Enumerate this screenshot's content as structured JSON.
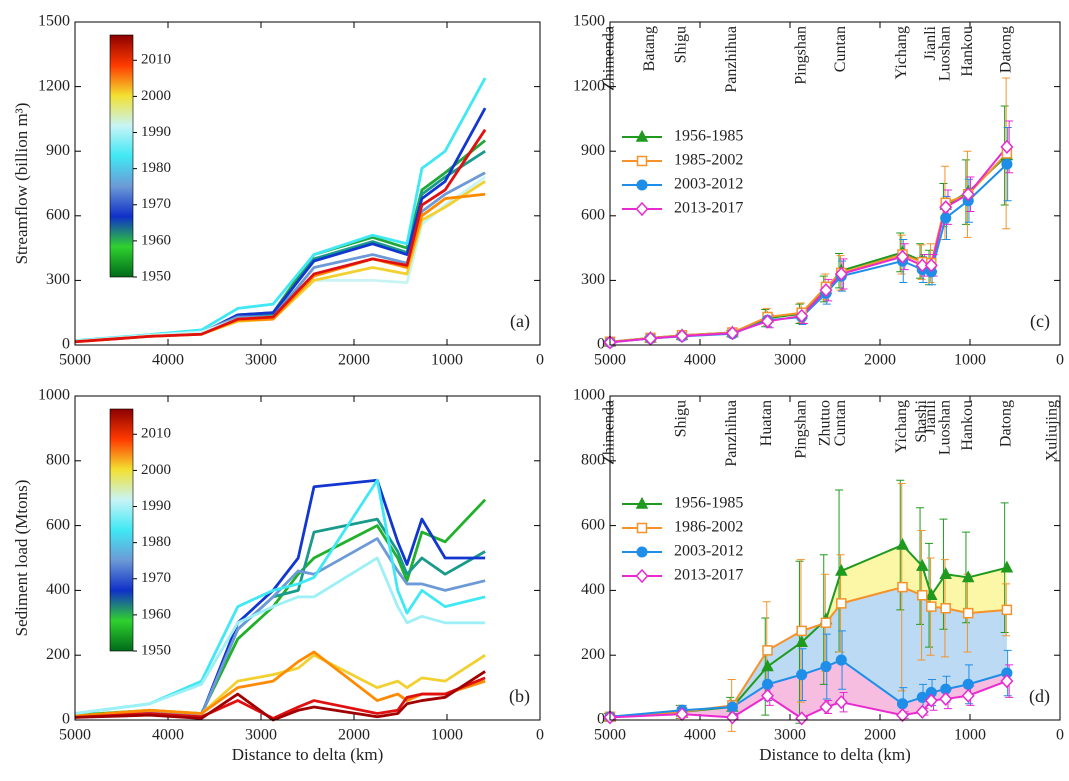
{
  "chart_data": [
    {
      "type": "line",
      "label": "(a)",
      "ylabel": "Streamflow (billion m³)",
      "xlim": [
        5000,
        0
      ],
      "xticks": [
        5000,
        4000,
        3000,
        2000,
        1000,
        0
      ],
      "ylim": [
        0,
        1500
      ],
      "yticks": [
        0,
        300,
        600,
        900,
        1200,
        1500
      ],
      "colorbar": {
        "lim": [
          1950,
          2017
        ],
        "ticks": [
          1950,
          1960,
          1970,
          1980,
          1990,
          2000,
          2010
        ],
        "colors": [
          "#006a1a",
          "#2fd12f",
          "#1030c8",
          "#6c9ad6",
          "#40e8f4",
          "#c8f4f6",
          "#f2e030",
          "#ff3a00",
          "#8c0000"
        ]
      },
      "x": [
        5000,
        4200,
        3640,
        3250,
        2870,
        2430,
        1800,
        1430,
        1270,
        1020,
        590
      ],
      "series": [
        {
          "color": "#21a83a",
          "values": [
            18,
            45,
            55,
            140,
            150,
            420,
            500,
            450,
            720,
            800,
            950
          ]
        },
        {
          "color": "#1a9a8a",
          "values": [
            18,
            45,
            55,
            130,
            140,
            400,
            480,
            430,
            700,
            780,
            900
          ]
        },
        {
          "color": "#1236d0",
          "values": [
            18,
            45,
            55,
            140,
            150,
            390,
            470,
            420,
            680,
            760,
            1100
          ]
        },
        {
          "color": "#6c9ad6",
          "values": [
            18,
            45,
            60,
            130,
            130,
            360,
            420,
            380,
            620,
            700,
            800
          ]
        },
        {
          "color": "#40e8f4",
          "values": [
            20,
            48,
            70,
            170,
            190,
            420,
            510,
            470,
            820,
            900,
            1240
          ]
        },
        {
          "color": "#c8f4f6",
          "values": [
            18,
            45,
            60,
            120,
            130,
            300,
            300,
            290,
            560,
            650,
            780
          ]
        },
        {
          "color": "#f2d030",
          "values": [
            15,
            40,
            50,
            110,
            120,
            300,
            360,
            330,
            580,
            640,
            760
          ]
        },
        {
          "color": "#ff8a00",
          "values": [
            15,
            40,
            50,
            115,
            120,
            320,
            400,
            360,
            600,
            680,
            700
          ]
        },
        {
          "color": "#e01010",
          "values": [
            15,
            40,
            50,
            120,
            130,
            330,
            400,
            370,
            650,
            720,
            1000
          ]
        }
      ]
    },
    {
      "type": "line",
      "label": "(b)",
      "ylabel": "Sediment load (Mtons)",
      "xlabel": "Distance to delta (km)",
      "xlim": [
        5000,
        0
      ],
      "xticks": [
        5000,
        4000,
        3000,
        2000,
        1000,
        0
      ],
      "ylim": [
        0,
        1000
      ],
      "yticks": [
        0,
        200,
        400,
        600,
        800,
        1000
      ],
      "colorbar": {
        "lim": [
          1950,
          2017
        ],
        "ticks": [
          1950,
          1960,
          1970,
          1980,
          1990,
          2000,
          2010
        ],
        "colors": [
          "#006a1a",
          "#2fd12f",
          "#1030c8",
          "#6c9ad6",
          "#40e8f4",
          "#c8f4f6",
          "#f2e030",
          "#ff3a00",
          "#8c0000"
        ]
      },
      "x": [
        5000,
        4200,
        3640,
        3250,
        2870,
        2600,
        2430,
        1750,
        1530,
        1430,
        1270,
        1020,
        590
      ],
      "series": [
        {
          "color": "#21b02a",
          "values": [
            15,
            30,
            20,
            250,
            350,
            450,
            500,
            600,
            500,
            430,
            580,
            550,
            680
          ]
        },
        {
          "color": "#1a9a8a",
          "values": [
            10,
            25,
            15,
            280,
            380,
            400,
            580,
            620,
            520,
            450,
            500,
            450,
            520
          ]
        },
        {
          "color": "#1236d0",
          "values": [
            10,
            25,
            15,
            300,
            400,
            500,
            720,
            740,
            550,
            480,
            620,
            500,
            500
          ]
        },
        {
          "color": "#6c9ad6",
          "values": [
            10,
            25,
            15,
            280,
            380,
            460,
            450,
            560,
            460,
            420,
            420,
            400,
            430
          ]
        },
        {
          "color": "#40e8f4",
          "values": [
            20,
            50,
            120,
            350,
            400,
            420,
            440,
            740,
            400,
            330,
            400,
            350,
            380
          ]
        },
        {
          "color": "#9ef0f6",
          "values": [
            20,
            50,
            110,
            300,
            350,
            380,
            380,
            500,
            350,
            300,
            320,
            300,
            300
          ]
        },
        {
          "color": "#f2d030",
          "values": [
            12,
            30,
            20,
            120,
            140,
            160,
            200,
            100,
            120,
            100,
            130,
            120,
            200
          ]
        },
        {
          "color": "#ff8a00",
          "values": [
            12,
            30,
            20,
            100,
            120,
            180,
            210,
            60,
            80,
            60,
            80,
            80,
            120
          ]
        },
        {
          "color": "#e01010",
          "values": [
            8,
            20,
            10,
            60,
            5,
            40,
            60,
            20,
            30,
            70,
            80,
            80,
            130
          ]
        },
        {
          "color": "#a00000",
          "values": [
            8,
            15,
            5,
            80,
            0,
            30,
            40,
            10,
            20,
            50,
            60,
            70,
            150
          ]
        }
      ]
    },
    {
      "type": "errorline",
      "label": "(c)",
      "legend": "upper left",
      "xlim": [
        5000,
        0
      ],
      "xticks": [
        5000,
        4000,
        3000,
        2000,
        1000,
        0
      ],
      "ylim": [
        0,
        1500
      ],
      "yticks": [
        0,
        300,
        600,
        900,
        1200,
        1500
      ],
      "stations": [
        {
          "label": "Zhimenda",
          "x": 5000
        },
        {
          "label": "Batang",
          "x": 4550
        },
        {
          "label": "Shigu",
          "x": 4200
        },
        {
          "label": "Panzhihua",
          "x": 3640
        },
        {
          "label": "Pingshan",
          "x": 2870
        },
        {
          "label": "Cuntan",
          "x": 2430
        },
        {
          "label": "Yichang",
          "x": 1750
        },
        {
          "label": "Jianli",
          "x": 1430
        },
        {
          "label": "Luoshan",
          "x": 1270
        },
        {
          "label": "Hankou",
          "x": 1020
        },
        {
          "label": "Datong",
          "x": 590
        }
      ],
      "x": [
        5000,
        4550,
        4200,
        3640,
        3250,
        2870,
        2600,
        2430,
        1750,
        1530,
        1430,
        1270,
        1020,
        590
      ],
      "series": [
        {
          "name": "1956-1985",
          "color": "#1f9a1f",
          "marker": "triangle",
          "filled": true,
          "values": [
            15,
            33,
            45,
            58,
            125,
            145,
            260,
            345,
            430,
            390,
            360,
            650,
            710,
            880
          ],
          "errors": [
            3,
            5,
            5,
            8,
            40,
            45,
            60,
            80,
            90,
            80,
            80,
            100,
            150,
            230
          ]
        },
        {
          "name": "1985-2002",
          "color": "#f5922a",
          "marker": "square",
          "filled": false,
          "values": [
            15,
            33,
            45,
            58,
            130,
            150,
            270,
            335,
            420,
            385,
            380,
            660,
            700,
            890
          ],
          "errors": [
            3,
            5,
            5,
            8,
            40,
            45,
            60,
            80,
            90,
            80,
            90,
            170,
            200,
            350
          ]
        },
        {
          "name": "2003-2012",
          "color": "#1e8ee8",
          "marker": "circle",
          "filled": true,
          "values": [
            12,
            30,
            40,
            52,
            115,
            130,
            240,
            320,
            390,
            350,
            340,
            590,
            670,
            840
          ],
          "errors": [
            3,
            5,
            5,
            8,
            30,
            35,
            50,
            70,
            100,
            60,
            60,
            100,
            100,
            170
          ]
        },
        {
          "name": "2013-2017",
          "color": "#e82ad0",
          "marker": "diamond",
          "filled": false,
          "values": [
            12,
            30,
            42,
            55,
            110,
            135,
            255,
            330,
            410,
            370,
            370,
            640,
            700,
            920
          ],
          "errors": [
            3,
            5,
            5,
            8,
            30,
            35,
            50,
            70,
            60,
            50,
            50,
            80,
            80,
            120
          ]
        }
      ]
    },
    {
      "type": "errorline",
      "label": "(d)",
      "legend": "upper left",
      "xlabel": "Distance to delta (km)",
      "xlim": [
        5000,
        0
      ],
      "xticks": [
        5000,
        4000,
        3000,
        2000,
        1000,
        0
      ],
      "ylim": [
        0,
        1000
      ],
      "yticks": [
        0,
        200,
        400,
        600,
        800,
        1000
      ],
      "stations": [
        {
          "label": "Zhimenda",
          "x": 5000
        },
        {
          "label": "Shigu",
          "x": 4200
        },
        {
          "label": "Panzhihua",
          "x": 3640
        },
        {
          "label": "Huatan",
          "x": 3250
        },
        {
          "label": "Pingshan",
          "x": 2870
        },
        {
          "label": "Zhutuo",
          "x": 2600
        },
        {
          "label": "Cuntan",
          "x": 2430
        },
        {
          "label": "Yichang",
          "x": 1750
        },
        {
          "label": "Shashi",
          "x": 1530
        },
        {
          "label": "Jianli",
          "x": 1430
        },
        {
          "label": "Luoshan",
          "x": 1270
        },
        {
          "label": "Hankou",
          "x": 1020
        },
        {
          "label": "Datong",
          "x": 590
        },
        {
          "label": "Xuliujing",
          "x": 80
        }
      ],
      "x": [
        5000,
        4200,
        3640,
        3250,
        2870,
        2600,
        2430,
        1750,
        1530,
        1430,
        1270,
        1020,
        590
      ],
      "series": [
        {
          "name": "1956-1985",
          "color": "#1f9a1f",
          "marker": "triangle",
          "filled": true,
          "fill": "#fbf7a6",
          "values": [
            10,
            25,
            40,
            165,
            240,
            310,
            460,
            540,
            475,
            385,
            450,
            440,
            470
          ],
          "errors": [
            10,
            20,
            30,
            150,
            250,
            200,
            250,
            200,
            180,
            160,
            170,
            140,
            200
          ]
        },
        {
          "name": "1986-2002",
          "color": "#f5922a",
          "marker": "square",
          "filled": false,
          "fill": "#bcdaf4",
          "values": [
            10,
            25,
            45,
            215,
            275,
            300,
            360,
            410,
            385,
            350,
            345,
            330,
            340
          ],
          "errors": [
            10,
            20,
            80,
            150,
            220,
            150,
            150,
            320,
            200,
            150,
            150,
            120,
            80
          ]
        },
        {
          "name": "2003-2012",
          "color": "#1e8ee8",
          "marker": "circle",
          "filled": true,
          "fill": "#f7bde0",
          "values": [
            10,
            30,
            40,
            110,
            140,
            165,
            185,
            50,
            70,
            85,
            95,
            110,
            145
          ],
          "errors": [
            10,
            15,
            20,
            50,
            80,
            100,
            90,
            50,
            40,
            40,
            40,
            60,
            70
          ]
        },
        {
          "name": "2013-2017",
          "color": "#e82ad0",
          "marker": "diamond",
          "filled": false,
          "values": [
            8,
            18,
            8,
            75,
            5,
            40,
            55,
            15,
            25,
            60,
            65,
            75,
            120
          ],
          "errors": [
            5,
            10,
            5,
            30,
            5,
            20,
            30,
            10,
            10,
            30,
            30,
            30,
            50
          ]
        }
      ]
    }
  ]
}
